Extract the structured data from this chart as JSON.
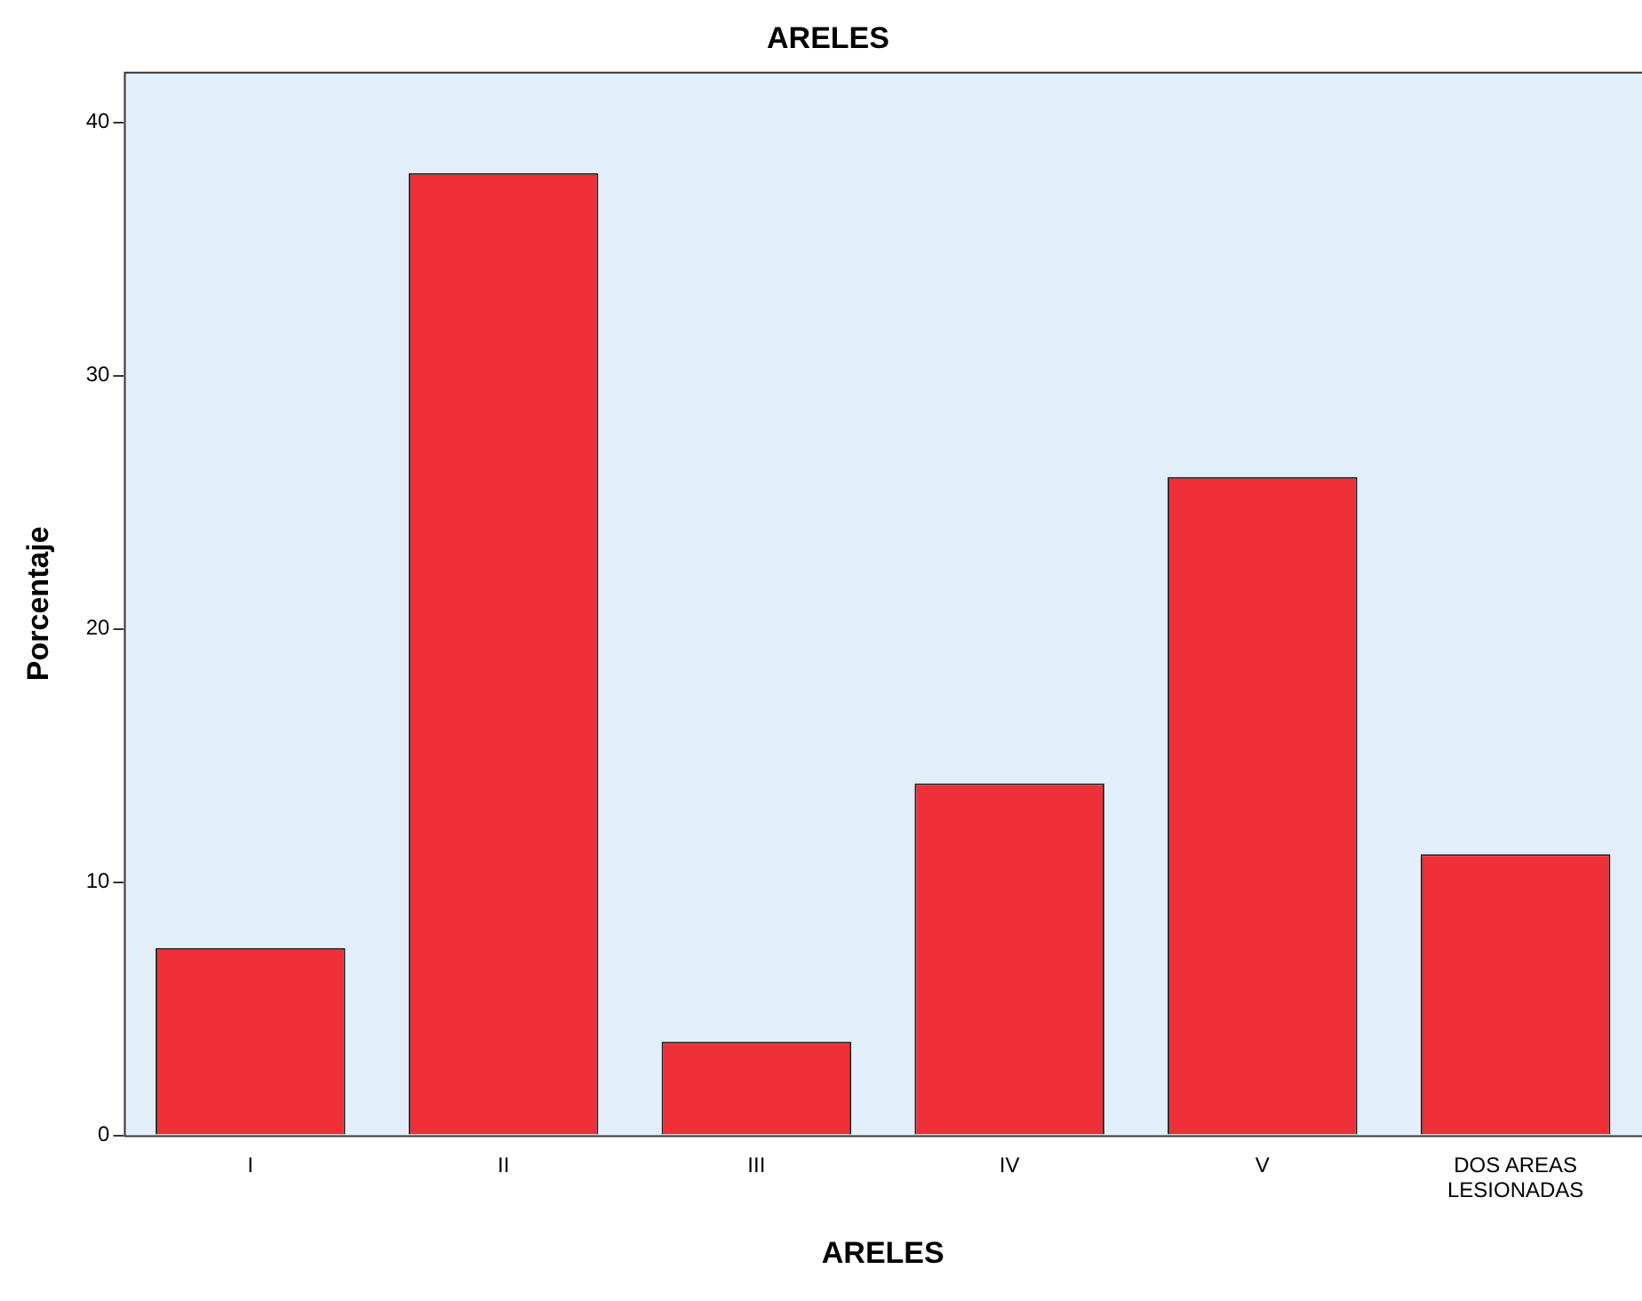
{
  "chart_data": {
    "type": "bar",
    "title": "ARELES",
    "xlabel": "ARELES",
    "ylabel": "Porcentaje",
    "categories": [
      "I",
      "II",
      "III",
      "IV",
      "V",
      "DOS AREAS LESIONADAS"
    ],
    "values": [
      7.4,
      38.0,
      3.7,
      13.9,
      26.0,
      11.1
    ],
    "color": "#ef3038",
    "ylim": [
      0,
      42
    ],
    "yticks": [
      0,
      10,
      20,
      30,
      40
    ],
    "grid": false,
    "legend": false
  }
}
